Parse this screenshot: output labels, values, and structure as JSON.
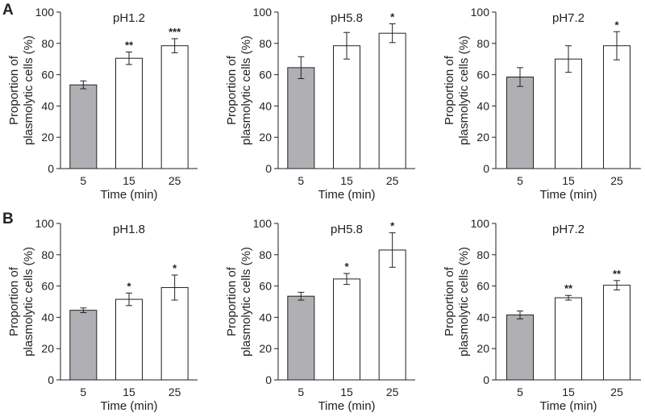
{
  "figure": {
    "panel_labels": [
      "A",
      "B"
    ]
  },
  "colors": {
    "control_bar": "#b0b0b4",
    "treatment_bar": "#ffffff",
    "stroke": "#222222"
  },
  "chart_data": [
    {
      "type": "bar",
      "panel": "A",
      "title": "pH1.2",
      "categories": [
        "5",
        "15",
        "25"
      ],
      "values": [
        53.5,
        70.5,
        78.5
      ],
      "errors": [
        2.5,
        4.0,
        4.5
      ],
      "significance": [
        "",
        "**",
        "***"
      ],
      "xlabel": "Time (min)",
      "ylabel_lines": [
        "Proportion of",
        "plasmolytic cells (%)"
      ],
      "ylim": [
        0,
        100
      ],
      "yticks": [
        0,
        20,
        40,
        60,
        80,
        100
      ]
    },
    {
      "type": "bar",
      "panel": "A",
      "title": "pH5.8",
      "categories": [
        "5",
        "15",
        "25"
      ],
      "values": [
        64.5,
        78.5,
        86.5
      ],
      "errors": [
        7.0,
        8.5,
        6.0
      ],
      "significance": [
        "",
        "",
        "*"
      ],
      "xlabel": "Time (min)",
      "ylabel_lines": [
        "Proportion of",
        "plasmolytic cells (%)"
      ],
      "ylim": [
        0,
        100
      ],
      "yticks": [
        0,
        20,
        40,
        60,
        80,
        100
      ]
    },
    {
      "type": "bar",
      "panel": "A",
      "title": "pH7.2",
      "categories": [
        "5",
        "15",
        "25"
      ],
      "values": [
        58.5,
        70.0,
        78.5
      ],
      "errors": [
        6.0,
        8.5,
        9.0
      ],
      "significance": [
        "",
        "",
        "*"
      ],
      "xlabel": "Time (min)",
      "ylabel_lines": [
        "Proportion of",
        "plasmolytic cells (%)"
      ],
      "ylim": [
        0,
        100
      ],
      "yticks": [
        0,
        20,
        40,
        60,
        80,
        100
      ]
    },
    {
      "type": "bar",
      "panel": "B",
      "title": "pH1.8",
      "categories": [
        "5",
        "15",
        "25"
      ],
      "values": [
        44.5,
        51.5,
        59.0
      ],
      "errors": [
        1.5,
        4.0,
        8.0
      ],
      "significance": [
        "",
        "*",
        "*"
      ],
      "xlabel": "Time (min)",
      "ylabel_lines": [
        "Proportion of",
        "plasmolytic cells (%)"
      ],
      "ylim": [
        0,
        100
      ],
      "yticks": [
        0,
        20,
        40,
        60,
        80,
        100
      ]
    },
    {
      "type": "bar",
      "panel": "B",
      "title": "pH5.8",
      "categories": [
        "5",
        "15",
        "25"
      ],
      "values": [
        53.5,
        64.5,
        83.0
      ],
      "errors": [
        2.5,
        3.5,
        11.0
      ],
      "significance": [
        "",
        "*",
        "*"
      ],
      "xlabel": "Time (min)",
      "ylabel_lines": [
        "Proportion of",
        "plasmolytic cells (%)"
      ],
      "ylim": [
        0,
        100
      ],
      "yticks": [
        0,
        20,
        40,
        60,
        80,
        100
      ]
    },
    {
      "type": "bar",
      "panel": "B",
      "title": "pH7.2",
      "categories": [
        "5",
        "15",
        "25"
      ],
      "values": [
        41.5,
        52.5,
        60.5
      ],
      "errors": [
        2.5,
        1.5,
        3.0
      ],
      "significance": [
        "",
        "**",
        "**"
      ],
      "xlabel": "Time (min)",
      "ylabel_lines": [
        "Proportion of",
        "plasmolytic cells (%)"
      ],
      "ylim": [
        0,
        100
      ],
      "yticks": [
        0,
        20,
        40,
        60,
        80,
        100
      ]
    }
  ]
}
